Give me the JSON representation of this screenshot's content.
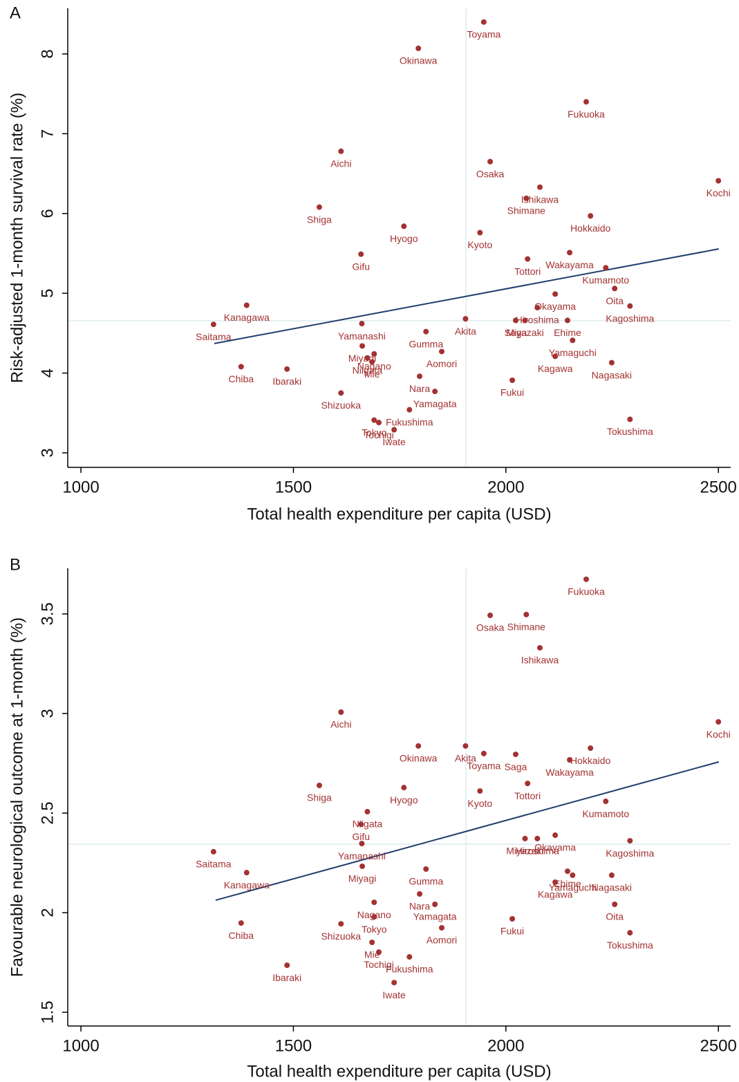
{
  "chart_data": [
    {
      "type": "scatter",
      "panel_label": "A",
      "x_label": "Total health expenditure per capita (USD)",
      "y_label": "Risk-adjusted 1-month survival rate (%)",
      "color": "#a33232",
      "line_color": "#1f3d6b",
      "ref_color": "#d5e7ea",
      "point_labels": [
        "Toyama",
        "Okinawa",
        "Fukuoka",
        "Aichi",
        "Osaka",
        "Ishikawa",
        "Kochi",
        "Shimane",
        "Shiga",
        "Hokkaido",
        "Hyogo",
        "Kyoto",
        "Gifu",
        "Wakayama",
        "Tottori",
        "Kumamoto",
        "Oita",
        "Okayama",
        "Kanagawa",
        "Kagoshima",
        "Hiroshima",
        "Akita",
        "Saitama",
        "Yamanashi",
        "Saga",
        "Miyazaki",
        "Ehime",
        "Gumma",
        "Aomori",
        "Yamaguchi",
        "Kagawa",
        "Nagasaki",
        "Miyagi",
        "Nagano",
        "Niigata",
        "Mie",
        "Chiba",
        "Ibaraki",
        "Nara",
        "Fukui",
        "Shizuoka",
        "Yamagata",
        "Fukushima",
        "Tokyo",
        "Tochigi",
        "Iwate",
        "Tokushima"
      ],
      "x": [
        1948,
        1794,
        2189,
        1612,
        1963,
        2080,
        2500,
        2048,
        1561,
        2199,
        1760,
        1939,
        1659,
        2150,
        2051,
        2235,
        2256,
        2116,
        1390,
        2292,
        2074,
        1905,
        1312,
        1661,
        2023,
        2045,
        2145,
        1812,
        1849,
        2157,
        2116,
        2249,
        1662,
        1690,
        1674,
        1685,
        1377,
        1485,
        1797,
        2015,
        1612,
        1833,
        1773,
        1690,
        1701,
        1737,
        2292
      ],
      "values": [
        8.4,
        8.07,
        7.4,
        6.78,
        6.65,
        6.33,
        6.41,
        6.19,
        6.08,
        5.97,
        5.84,
        5.76,
        5.49,
        5.51,
        5.43,
        5.32,
        5.06,
        4.99,
        4.85,
        4.84,
        4.82,
        4.68,
        4.61,
        4.62,
        4.66,
        4.66,
        4.66,
        4.52,
        4.27,
        4.41,
        4.21,
        4.13,
        4.34,
        4.24,
        4.19,
        4.14,
        4.08,
        4.05,
        3.96,
        3.91,
        3.75,
        3.77,
        3.54,
        3.41,
        3.38,
        3.29,
        3.42
      ],
      "fit_line": {
        "x": [
          1314,
          2501
        ],
        "y": [
          4.37,
          5.556
        ]
      },
      "ref_x": 1906,
      "ref_y": 4.655,
      "xlim": [
        969,
        2529
      ],
      "ylim": [
        2.818,
        8.572
      ],
      "xticks": [
        1000,
        1500,
        2000,
        2500
      ],
      "yticks": [
        3,
        4,
        5,
        6,
        7,
        8
      ]
    },
    {
      "type": "scatter",
      "panel_label": "B",
      "x_label": "Total health expenditure per capita (USD)",
      "y_label": "Favourable neurological outcome at 1-month (%)",
      "color": "#a33232",
      "line_color": "#1f3d6b",
      "ref_color": "#d5e7ea",
      "point_labels": [
        "Toyama",
        "Okinawa",
        "Fukuoka",
        "Aichi",
        "Osaka",
        "Ishikawa",
        "Kochi",
        "Shimane",
        "Shiga",
        "Hokkaido",
        "Hyogo",
        "Kyoto",
        "Gifu",
        "Wakayama",
        "Tottori",
        "Kumamoto",
        "Oita",
        "Okayama",
        "Kanagawa",
        "Kagoshima",
        "Hiroshima",
        "Akita",
        "Saitama",
        "Yamanashi",
        "Saga",
        "Miyazaki",
        "Ehime",
        "Gumma",
        "Aomori",
        "Yamaguchi",
        "Kagawa",
        "Nagasaki",
        "Miyagi",
        "Nagano",
        "Niigata",
        "Mie",
        "Chiba",
        "Ibaraki",
        "Nara",
        "Fukui",
        "Shizuoka",
        "Yamagata",
        "Fukushima",
        "Tokyo",
        "Tochigi",
        "Iwate",
        "Tokushima"
      ],
      "x": [
        1948,
        1794,
        2189,
        1612,
        1963,
        2080,
        2500,
        2048,
        1561,
        2199,
        1760,
        1939,
        1659,
        2150,
        2051,
        2235,
        2256,
        2116,
        1390,
        2292,
        2074,
        1905,
        1312,
        1661,
        2023,
        2045,
        2145,
        1812,
        1849,
        2157,
        2116,
        2249,
        1662,
        1690,
        1674,
        1685,
        1377,
        1485,
        1797,
        2015,
        1612,
        1833,
        1773,
        1690,
        1701,
        1737,
        2292
      ],
      "values": [
        2.799,
        2.837,
        3.674,
        3.007,
        3.493,
        3.33,
        2.958,
        3.497,
        2.639,
        2.826,
        2.628,
        2.611,
        2.444,
        2.767,
        2.649,
        2.559,
        2.042,
        2.389,
        2.201,
        2.361,
        2.372,
        2.837,
        2.306,
        2.347,
        2.795,
        2.372,
        2.208,
        2.219,
        1.924,
        2.188,
        2.153,
        2.188,
        2.233,
        2.052,
        2.507,
        1.851,
        1.948,
        1.736,
        2.094,
        1.969,
        1.944,
        2.042,
        1.778,
        1.979,
        1.802,
        1.649,
        1.899
      ],
      "fit_line": {
        "x": [
          1317,
          2501
        ],
        "y": [
          2.0625,
          2.757
        ]
      },
      "ref_x": 1906,
      "ref_y": 2.344,
      "xlim": [
        969,
        2529
      ],
      "ylim": [
        1.431,
        3.729
      ],
      "xticks": [
        1000,
        1500,
        2000,
        2500
      ],
      "yticks": [
        1.5,
        2,
        2.5,
        3,
        3.5
      ]
    }
  ]
}
